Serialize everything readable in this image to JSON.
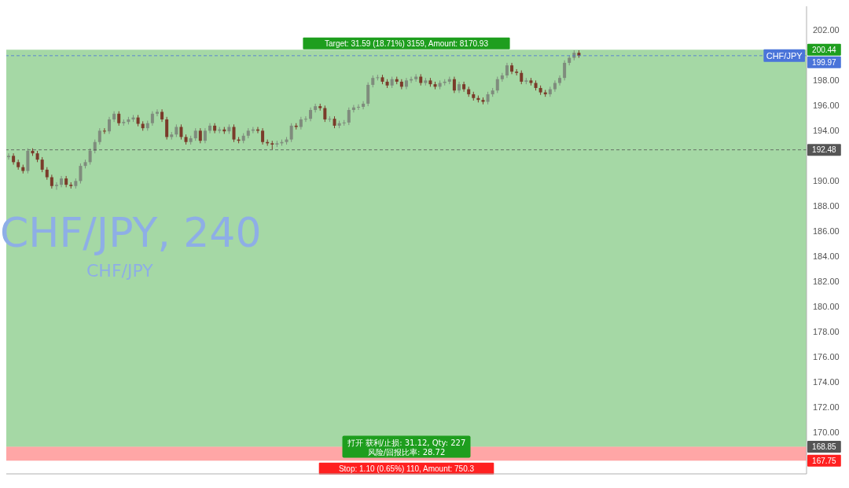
{
  "chart_data": {
    "type": "candlestick",
    "title": "CHF/JPY, 240",
    "subtitle": "CHF/JPY",
    "categories": [
      null,
      null,
      null,
      null,
      null,
      null,
      null,
      null,
      null,
      null,
      null,
      null,
      null,
      null,
      null,
      null,
      null,
      null,
      null,
      null,
      null,
      null,
      null,
      null,
      null,
      null,
      null,
      null,
      null,
      null,
      null,
      null,
      null,
      null,
      null,
      null,
      null,
      null,
      null,
      null,
      null,
      null,
      null,
      null,
      null,
      null,
      null,
      null,
      null,
      null,
      null,
      null,
      null,
      null,
      null,
      null,
      null,
      null,
      null,
      null,
      null,
      null,
      null,
      null,
      null,
      null,
      null,
      null,
      null,
      null,
      null,
      null,
      null,
      null,
      null,
      null,
      null,
      null,
      null,
      null,
      null,
      null,
      null,
      null,
      null,
      null,
      null,
      null,
      null,
      null,
      null,
      null,
      null,
      null,
      null,
      null,
      null,
      null,
      null,
      null,
      null,
      null,
      null,
      null,
      null,
      null,
      null,
      null,
      null,
      null,
      null,
      null,
      null,
      null,
      null,
      null,
      null,
      null,
      null,
      null,
      null,
      null,
      null,
      null,
      null,
      null,
      null,
      null,
      null,
      null,
      null,
      null,
      null,
      null,
      null,
      null,
      null,
      null,
      null,
      null,
      null,
      null,
      null,
      null,
      null,
      null,
      null,
      null,
      null,
      null,
      null,
      null,
      null,
      null,
      null,
      null,
      null,
      null,
      null,
      null,
      null,
      null,
      null,
      null,
      null,
      null,
      null
    ],
    "ohlc": [
      [
        191.9,
        192.2,
        191.7,
        192.0
      ],
      [
        192.0,
        192.2,
        191.3,
        191.5
      ],
      [
        191.5,
        191.7,
        190.9,
        191.1
      ],
      [
        191.1,
        191.3,
        190.6,
        190.8
      ],
      [
        190.8,
        192.6,
        190.6,
        192.4
      ],
      [
        192.4,
        192.6,
        192.0,
        192.2
      ],
      [
        192.2,
        192.4,
        191.5,
        191.7
      ],
      [
        191.7,
        191.9,
        190.7,
        190.9
      ],
      [
        190.9,
        191.1,
        190.1,
        190.3
      ],
      [
        190.3,
        190.5,
        189.4,
        189.6
      ],
      [
        189.6,
        189.9,
        189.3,
        189.7
      ],
      [
        189.7,
        190.4,
        189.5,
        190.2
      ],
      [
        190.2,
        190.4,
        189.5,
        189.7
      ],
      [
        189.7,
        189.9,
        189.4,
        189.6
      ],
      [
        189.6,
        190.2,
        189.4,
        190.0
      ],
      [
        190.0,
        191.4,
        189.8,
        191.2
      ],
      [
        191.2,
        191.7,
        191.0,
        191.5
      ],
      [
        191.5,
        192.6,
        191.3,
        192.4
      ],
      [
        192.4,
        193.3,
        192.2,
        193.1
      ],
      [
        193.1,
        194.2,
        192.9,
        194.0
      ],
      [
        194.0,
        194.2,
        193.75,
        193.95
      ],
      [
        193.95,
        195.1,
        193.75,
        194.9
      ],
      [
        194.9,
        195.55,
        194.7,
        195.35
      ],
      [
        195.35,
        195.55,
        194.4,
        194.6
      ],
      [
        194.6,
        194.9,
        194.4,
        194.7
      ],
      [
        194.7,
        195.1,
        194.5,
        194.9
      ],
      [
        194.9,
        195.25,
        194.7,
        195.05
      ],
      [
        195.05,
        195.25,
        194.35,
        194.55
      ],
      [
        194.55,
        194.75,
        194.0,
        194.2
      ],
      [
        194.2,
        194.8,
        194.0,
        194.6
      ],
      [
        194.6,
        195.55,
        194.4,
        195.35
      ],
      [
        195.35,
        195.7,
        195.15,
        195.5
      ],
      [
        195.5,
        195.7,
        194.7,
        194.9
      ],
      [
        194.9,
        195.1,
        193.3,
        193.5
      ],
      [
        193.5,
        193.9,
        193.3,
        193.7
      ],
      [
        193.7,
        194.5,
        193.5,
        194.3
      ],
      [
        194.3,
        194.5,
        193.3,
        193.5
      ],
      [
        193.5,
        193.7,
        192.9,
        193.1
      ],
      [
        193.1,
        193.6,
        192.9,
        193.4
      ],
      [
        193.4,
        194.2,
        193.2,
        194.0
      ],
      [
        194.0,
        194.2,
        193.0,
        193.2
      ],
      [
        193.2,
        194.2,
        193.0,
        194.0
      ],
      [
        194.0,
        194.6,
        193.8,
        194.4
      ],
      [
        194.4,
        194.6,
        193.8,
        194.0
      ],
      [
        194.0,
        194.3,
        193.8,
        194.1
      ],
      [
        194.1,
        194.3,
        193.75,
        193.95
      ],
      [
        193.95,
        194.5,
        193.75,
        194.3
      ],
      [
        194.3,
        194.5,
        193.1,
        193.3
      ],
      [
        193.3,
        193.5,
        193.0,
        193.2
      ],
      [
        193.2,
        193.8,
        193.0,
        193.6
      ],
      [
        193.6,
        194.2,
        193.4,
        194.0
      ],
      [
        194.0,
        194.3,
        193.8,
        194.1
      ],
      [
        194.1,
        194.3,
        193.8,
        194.0
      ],
      [
        194.0,
        194.2,
        192.9,
        193.1
      ],
      [
        193.1,
        193.3,
        192.8,
        193.0
      ],
      [
        193.0,
        193.2,
        192.5,
        192.9
      ],
      [
        192.9,
        193.2,
        192.7,
        193.0
      ],
      [
        193.0,
        193.3,
        192.8,
        193.1
      ],
      [
        193.1,
        193.5,
        192.9,
        193.3
      ],
      [
        193.3,
        194.6,
        193.1,
        194.4
      ],
      [
        194.4,
        194.6,
        194.1,
        194.3
      ],
      [
        194.3,
        195.1,
        194.1,
        194.9
      ],
      [
        194.9,
        195.15,
        194.7,
        194.95
      ],
      [
        194.95,
        195.85,
        194.75,
        195.65
      ],
      [
        195.65,
        196.15,
        195.45,
        195.95
      ],
      [
        195.95,
        196.15,
        195.6,
        195.8
      ],
      [
        195.8,
        196.0,
        194.7,
        194.9
      ],
      [
        194.9,
        195.15,
        194.7,
        194.95
      ],
      [
        194.95,
        195.15,
        194.2,
        194.4
      ],
      [
        194.4,
        194.8,
        194.2,
        194.6
      ],
      [
        194.6,
        194.85,
        194.4,
        194.65
      ],
      [
        194.65,
        195.85,
        194.45,
        195.65
      ],
      [
        195.65,
        196.05,
        195.45,
        195.85
      ],
      [
        195.85,
        196.1,
        195.65,
        195.9
      ],
      [
        195.9,
        196.35,
        195.7,
        196.15
      ],
      [
        196.15,
        197.85,
        195.95,
        197.65
      ],
      [
        197.65,
        198.4,
        197.45,
        198.2
      ],
      [
        198.2,
        198.45,
        198.0,
        198.25
      ],
      [
        198.25,
        198.45,
        197.7,
        197.9
      ],
      [
        197.9,
        198.1,
        197.4,
        197.6
      ],
      [
        197.6,
        198.3,
        197.4,
        198.1
      ],
      [
        198.1,
        198.3,
        197.7,
        197.9
      ],
      [
        197.9,
        198.1,
        197.3,
        197.5
      ],
      [
        197.5,
        198.2,
        197.3,
        198.0
      ],
      [
        198.0,
        198.3,
        197.8,
        198.1
      ],
      [
        198.1,
        198.5,
        197.9,
        198.3
      ],
      [
        198.3,
        198.5,
        197.6,
        197.8
      ],
      [
        197.8,
        198.2,
        197.6,
        198.0
      ],
      [
        198.0,
        198.2,
        197.5,
        197.7
      ],
      [
        197.7,
        197.9,
        197.3,
        197.5
      ],
      [
        197.5,
        198.0,
        197.3,
        197.8
      ],
      [
        197.8,
        198.1,
        197.6,
        197.9
      ],
      [
        197.9,
        198.3,
        197.7,
        198.1
      ],
      [
        198.1,
        198.3,
        197.0,
        197.2
      ],
      [
        197.2,
        197.9,
        197.0,
        197.7
      ],
      [
        197.7,
        197.9,
        197.1,
        197.3
      ],
      [
        197.3,
        197.5,
        196.7,
        196.9
      ],
      [
        196.9,
        197.1,
        196.4,
        196.6
      ],
      [
        196.6,
        196.8,
        196.25,
        196.45
      ],
      [
        196.45,
        196.65,
        196.1,
        196.3
      ],
      [
        196.3,
        197.1,
        196.1,
        196.9
      ],
      [
        196.9,
        197.4,
        196.7,
        197.2
      ],
      [
        197.2,
        198.3,
        197.0,
        198.1
      ],
      [
        198.1,
        198.6,
        197.9,
        198.4
      ],
      [
        198.4,
        199.4,
        198.2,
        199.2
      ],
      [
        199.2,
        199.4,
        198.5,
        198.7
      ],
      [
        198.7,
        198.9,
        198.4,
        198.6
      ],
      [
        198.6,
        198.8,
        197.7,
        197.9
      ],
      [
        197.9,
        198.2,
        197.7,
        198.0
      ],
      [
        198.0,
        198.2,
        197.6,
        197.8
      ],
      [
        197.8,
        198.0,
        197.2,
        197.4
      ],
      [
        197.4,
        197.6,
        196.85,
        197.05
      ],
      [
        197.05,
        197.25,
        196.7,
        196.9
      ],
      [
        196.9,
        197.5,
        196.7,
        197.3
      ],
      [
        197.3,
        198.0,
        197.1,
        197.8
      ],
      [
        197.8,
        198.4,
        197.6,
        198.2
      ],
      [
        198.2,
        199.6,
        198.0,
        199.4
      ],
      [
        199.4,
        200.0,
        199.2,
        199.8
      ],
      [
        199.8,
        200.4,
        199.6,
        200.2
      ],
      [
        200.2,
        200.4,
        199.8,
        199.97
      ],
      null,
      null,
      null,
      null,
      null,
      null,
      null,
      null,
      null,
      null,
      null,
      null,
      null,
      null,
      null,
      null,
      null,
      null,
      null,
      null,
      null,
      null,
      null,
      null,
      null,
      null,
      null,
      null,
      null,
      null,
      null,
      null,
      null,
      null,
      null,
      null,
      null,
      null,
      null,
      null,
      null,
      null,
      null,
      null,
      null,
      null,
      null
    ],
    "ylim": [
      166.7,
      203.9
    ],
    "yticks": [
      {
        "value": 170,
        "label": "170.00"
      },
      {
        "value": 172,
        "label": "172.00"
      },
      {
        "value": 174,
        "label": "174.00"
      },
      {
        "value": 176,
        "label": "176.00"
      },
      {
        "value": 178,
        "label": "178.00"
      },
      {
        "value": 180,
        "label": "180.00"
      },
      {
        "value": 182,
        "label": "182.00"
      },
      {
        "value": 184,
        "label": "184.00"
      },
      {
        "value": 186,
        "label": "186.00"
      },
      {
        "value": 188,
        "label": "188.00"
      },
      {
        "value": 190,
        "label": "190.00"
      },
      {
        "value": 192,
        "label": null
      },
      {
        "value": 194,
        "label": "194.00"
      },
      {
        "value": 196,
        "label": "196.00"
      },
      {
        "value": 198,
        "label": "198.00"
      },
      {
        "value": 200,
        "label": null
      },
      {
        "value": 202,
        "label": "202.00"
      }
    ],
    "tick_labels": "y",
    "ref_lines": [
      {
        "axis": "y",
        "value": 199.97,
        "label": "CHF/JPY",
        "color": "#4a74d9",
        "line_style": "dashed"
      },
      {
        "axis": "y",
        "value": 192.48,
        "label": null,
        "color": "#555555",
        "line_style": "dashed"
      }
    ],
    "bands": [
      {
        "axis": "y",
        "from": 168.85,
        "to": 200.44,
        "label": "Target: 31.59 (18.71%) 3159, Amount: 8170.93",
        "color": "#1e9e1e"
      },
      {
        "axis": "y",
        "from": 167.75,
        "to": 168.85,
        "label": "Stop: 1.10 (0.65%) 110, Amount: 750.3",
        "color": "#ff2020"
      }
    ],
    "annotations": [
      "打开 获利/止损: 31.12, Qty: 227",
      "风险/回报比率: 28.72",
      "200.44",
      "199.97",
      "192.48",
      "168.85",
      "167.75"
    ]
  }
}
